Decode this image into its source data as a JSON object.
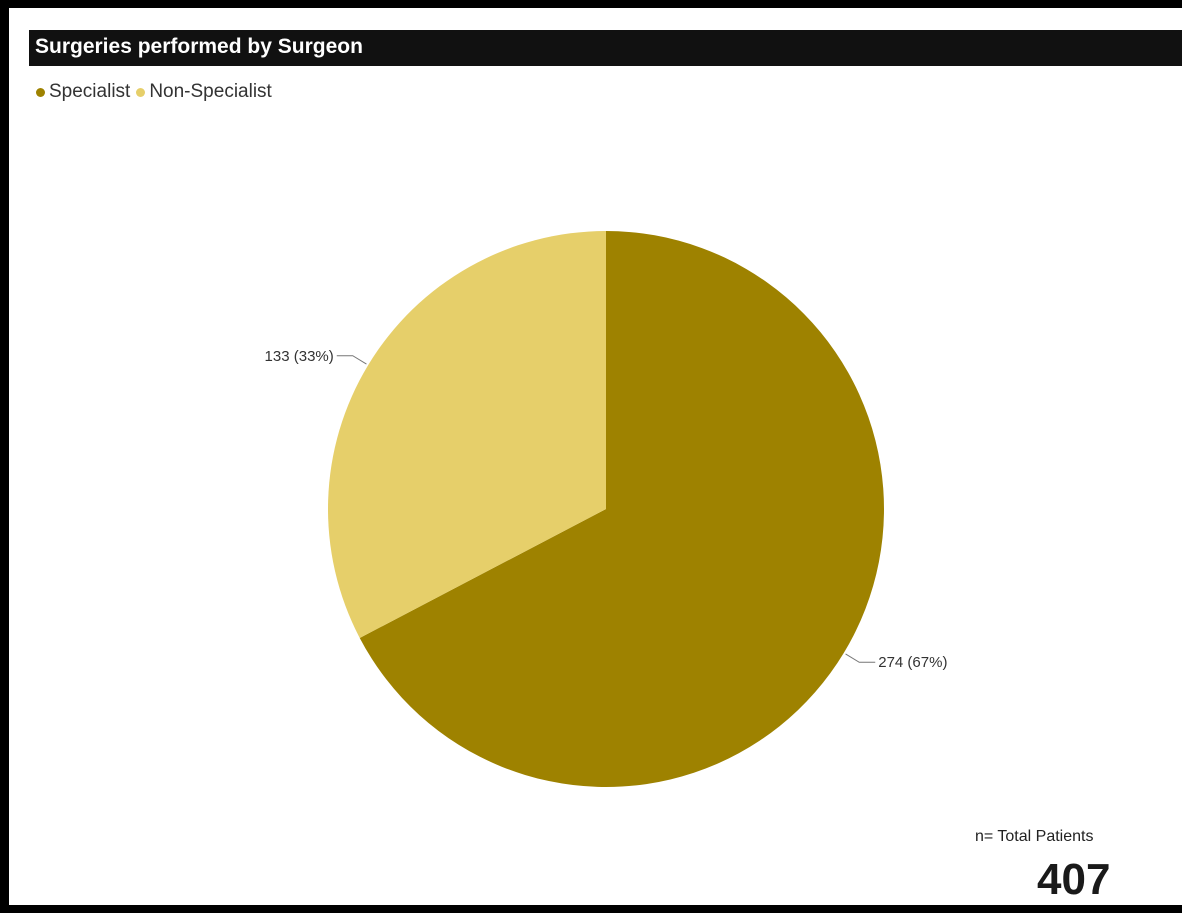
{
  "chart_data": {
    "type": "pie",
    "title": "Surgeries performed by Surgeon",
    "categories": [
      "Specialist",
      "Non-Specialist"
    ],
    "values": [
      274,
      133
    ],
    "percent_labels": [
      "274 (67%)",
      "133 (33%)"
    ],
    "colors": [
      "#9e8200",
      "#e6cf6a"
    ],
    "legend_position": "top-left",
    "start_angle_deg": 0,
    "direction": "clockwise"
  },
  "summary": {
    "label": "n= Total Patients",
    "value": "407"
  }
}
